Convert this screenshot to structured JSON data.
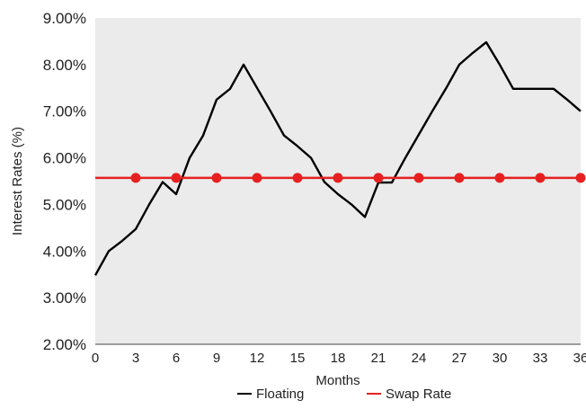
{
  "chart_data": {
    "type": "line",
    "title": "",
    "xlabel": "Months",
    "ylabel": "Interest Rates (%)",
    "xlim": [
      0,
      36
    ],
    "ylim": [
      2.0,
      9.0
    ],
    "x_ticks": [
      0,
      3,
      6,
      9,
      12,
      15,
      18,
      21,
      24,
      27,
      30,
      33,
      36
    ],
    "y_ticks": [
      2.0,
      3.0,
      4.0,
      5.0,
      6.0,
      7.0,
      8.0,
      9.0
    ],
    "y_tick_labels": [
      "2.00%",
      "3.00%",
      "4.00%",
      "5.00%",
      "6.00%",
      "7.00%",
      "8.00%",
      "9.00%"
    ],
    "grid": false,
    "plot_background": "#ebebeb",
    "legend_position": "bottom",
    "series": [
      {
        "name": "Floating",
        "color": "#000000",
        "marker": "none",
        "x": [
          0,
          1,
          2,
          3,
          4,
          5,
          6,
          7,
          8,
          9,
          10,
          11,
          12,
          13,
          14,
          15,
          16,
          17,
          18,
          19,
          20,
          21,
          22,
          23,
          24,
          25,
          26,
          27,
          28,
          29,
          30,
          31,
          32,
          33,
          34,
          35,
          36
        ],
        "y": [
          3.48,
          4.0,
          4.22,
          4.47,
          5.0,
          5.48,
          5.22,
          6.0,
          6.48,
          7.25,
          7.48,
          8.0,
          7.5,
          7.0,
          6.48,
          6.25,
          6.0,
          5.48,
          5.22,
          5.0,
          4.73,
          5.47,
          5.47,
          6.0,
          6.5,
          7.0,
          7.48,
          8.0,
          8.25,
          8.48,
          8.0,
          7.48,
          7.48,
          7.48,
          7.48,
          7.25,
          7.0
        ]
      },
      {
        "name": "Swap Rate",
        "color": "#e62020",
        "marker": "circle",
        "x": [
          3,
          6,
          9,
          12,
          15,
          18,
          21,
          24,
          27,
          30,
          33,
          36
        ],
        "y": [
          5.57,
          5.57,
          5.57,
          5.57,
          5.57,
          5.57,
          5.57,
          5.57,
          5.57,
          5.57,
          5.57,
          5.57
        ],
        "line_x": [
          0,
          36
        ]
      }
    ]
  }
}
